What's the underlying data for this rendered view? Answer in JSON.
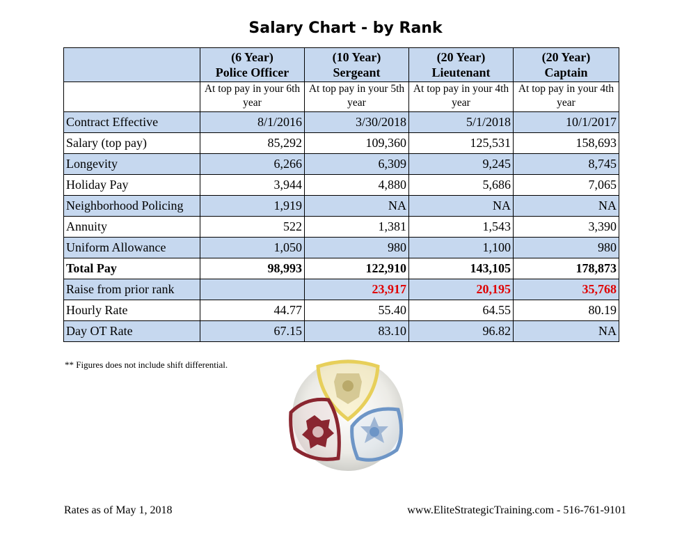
{
  "title": "Salary Chart - by Rank",
  "columns": [
    {
      "years": "(6 Year)",
      "rank": "Police Officer",
      "note": "At top pay in your 6th year"
    },
    {
      "years": "(10 Year)",
      "rank": "Sergeant",
      "note": "At top pay in your 5th year"
    },
    {
      "years": "(20 Year)",
      "rank": "Lieutenant",
      "note": "At top pay in your 4th year"
    },
    {
      "years": "(20 Year)",
      "rank": "Captain",
      "note": "At top pay in your 4th year"
    }
  ],
  "rows": [
    {
      "label": "Contract Effective",
      "values": [
        "8/1/2016",
        "3/30/2018",
        "5/1/2018",
        "10/1/2017"
      ]
    },
    {
      "label": "Salary (top pay)",
      "values": [
        "85,292",
        "109,360",
        "125,531",
        "158,693"
      ]
    },
    {
      "label": "Longevity",
      "values": [
        "6,266",
        "6,309",
        "9,245",
        "8,745"
      ]
    },
    {
      "label": "Holiday Pay",
      "values": [
        "3,944",
        "4,880",
        "5,686",
        "7,065"
      ]
    },
    {
      "label": "Neighborhood Policing",
      "values": [
        "1,919",
        "NA",
        "NA",
        "NA"
      ]
    },
    {
      "label": "Annuity",
      "values": [
        "522",
        "1,381",
        "1,543",
        "3,390"
      ]
    },
    {
      "label": "Uniform Allowance",
      "values": [
        "1,050",
        "980",
        "1,100",
        "980"
      ]
    },
    {
      "label": "Total Pay",
      "values": [
        "98,993",
        "122,910",
        "143,105",
        "178,873"
      ]
    },
    {
      "label": "Raise from prior rank",
      "values": [
        "",
        "23,917",
        "20,195",
        "35,768"
      ]
    },
    {
      "label": "Hourly Rate",
      "values": [
        "44.77",
        "55.40",
        "64.55",
        "80.19"
      ]
    },
    {
      "label": "Day OT Rate",
      "values": [
        "67.15",
        "83.10",
        "96.82",
        "NA"
      ]
    }
  ],
  "note": "** Figures does not include shift differential.",
  "footer": {
    "rates_as_of": "Rates as of May 1, 2018",
    "contact": "www.EliteStrategicTraining.com - 516-761-9101"
  },
  "colors": {
    "row_blue": "#c6d8ef",
    "raise_red": "#e00000",
    "shield_yellow": "#e7cf5a",
    "shield_maroon": "#8a2630",
    "shield_blue": "#6d95c6"
  }
}
